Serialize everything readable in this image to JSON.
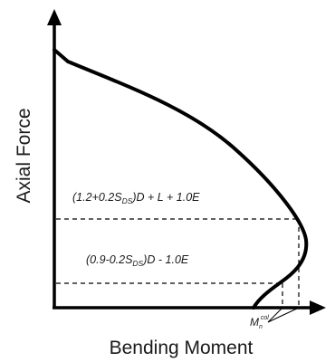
{
  "axes": {
    "y_label": "Axial Force",
    "x_label": "Bending Moment"
  },
  "load_combinations": [
    {
      "coef_open": "(1.2+0.2S",
      "coef_sub": "DS",
      "rest": ")D + L + 1.0E"
    },
    {
      "coef_open": "(0.9-0.2S",
      "coef_sub": "DS",
      "rest": ")D - 1.0E"
    }
  ],
  "moment_label": {
    "base": "M",
    "sub": "n",
    "sup": "col"
  }
}
